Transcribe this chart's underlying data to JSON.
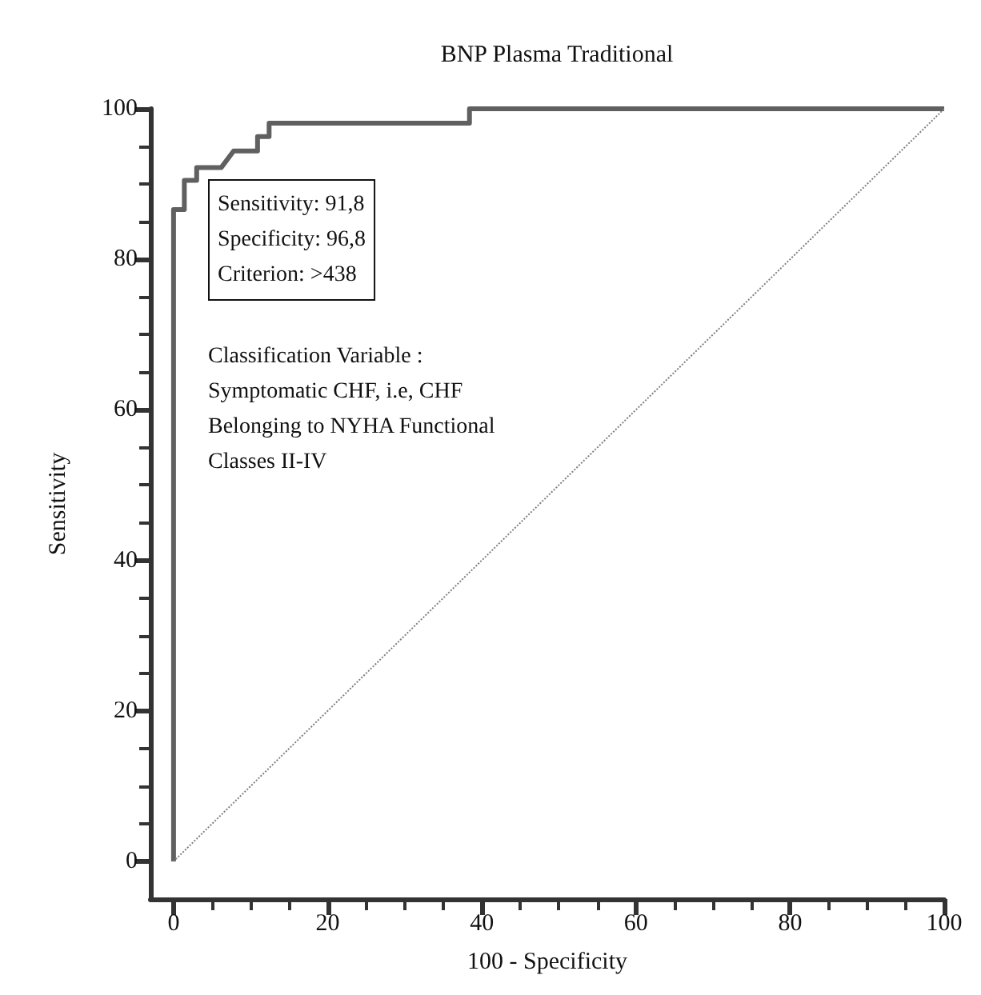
{
  "chart_data": {
    "type": "line",
    "title": "BNP Plasma Traditional",
    "xlabel": "100 - Specificity",
    "ylabel": "Sensitivity",
    "xlim": [
      -3,
      100
    ],
    "ylim": [
      -5,
      100
    ],
    "xticks": [
      0,
      20,
      40,
      60,
      80,
      100
    ],
    "yticks": [
      0,
      20,
      40,
      60,
      80,
      100
    ],
    "grid": false,
    "marker": "none",
    "series": [
      {
        "color": "#606060",
        "line_style": "solid",
        "x": [
          0,
          0,
          1.4,
          1.4,
          3,
          3,
          6.2,
          7.8,
          10.9,
          10.9,
          12.4,
          12.4,
          38.4,
          38.4,
          100
        ],
        "values": [
          0,
          86.6,
          86.6,
          90.5,
          90.5,
          92.2,
          92.2,
          94.4,
          94.4,
          96.3,
          96.3,
          98.1,
          98.1,
          100,
          100
        ]
      },
      {
        "color": "#808080",
        "line_style": "dotted",
        "x": [
          0,
          100
        ],
        "values": [
          0,
          100
        ]
      }
    ],
    "annotations": [
      "Sensitivity: 91,8\nSpecificity: 96,8\nCriterion: >438",
      "Classification Variable :\nSymptomatic CHF, i.e, CHF\nBelonging to NYHA Functional\nClasses II-IV"
    ]
  }
}
